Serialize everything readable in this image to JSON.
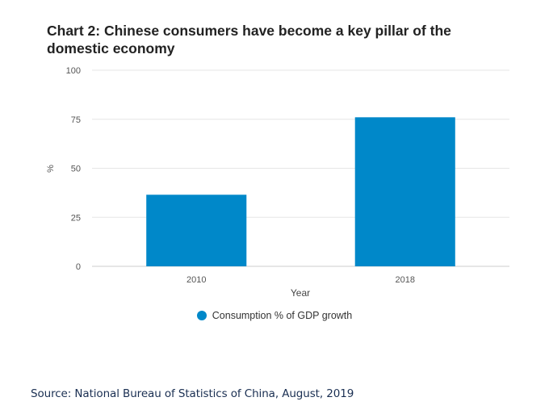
{
  "chart_data": {
    "type": "bar",
    "title": "Chart 2: Chinese consumers have become a key pillar of the domestic economy",
    "categories": [
      "2010",
      "2018"
    ],
    "series": [
      {
        "name": "Consumption % of GDP growth",
        "values": [
          36.5,
          76
        ],
        "color": "#0088c9"
      }
    ],
    "xlabel": "Year",
    "ylabel": "%",
    "ylim": [
      0,
      100
    ],
    "yticks": [
      0,
      25,
      50,
      75,
      100
    ],
    "grid": true,
    "legend_position": "bottom-center"
  },
  "source": "Source: National Bureau of Statistics of China, August, 2019"
}
